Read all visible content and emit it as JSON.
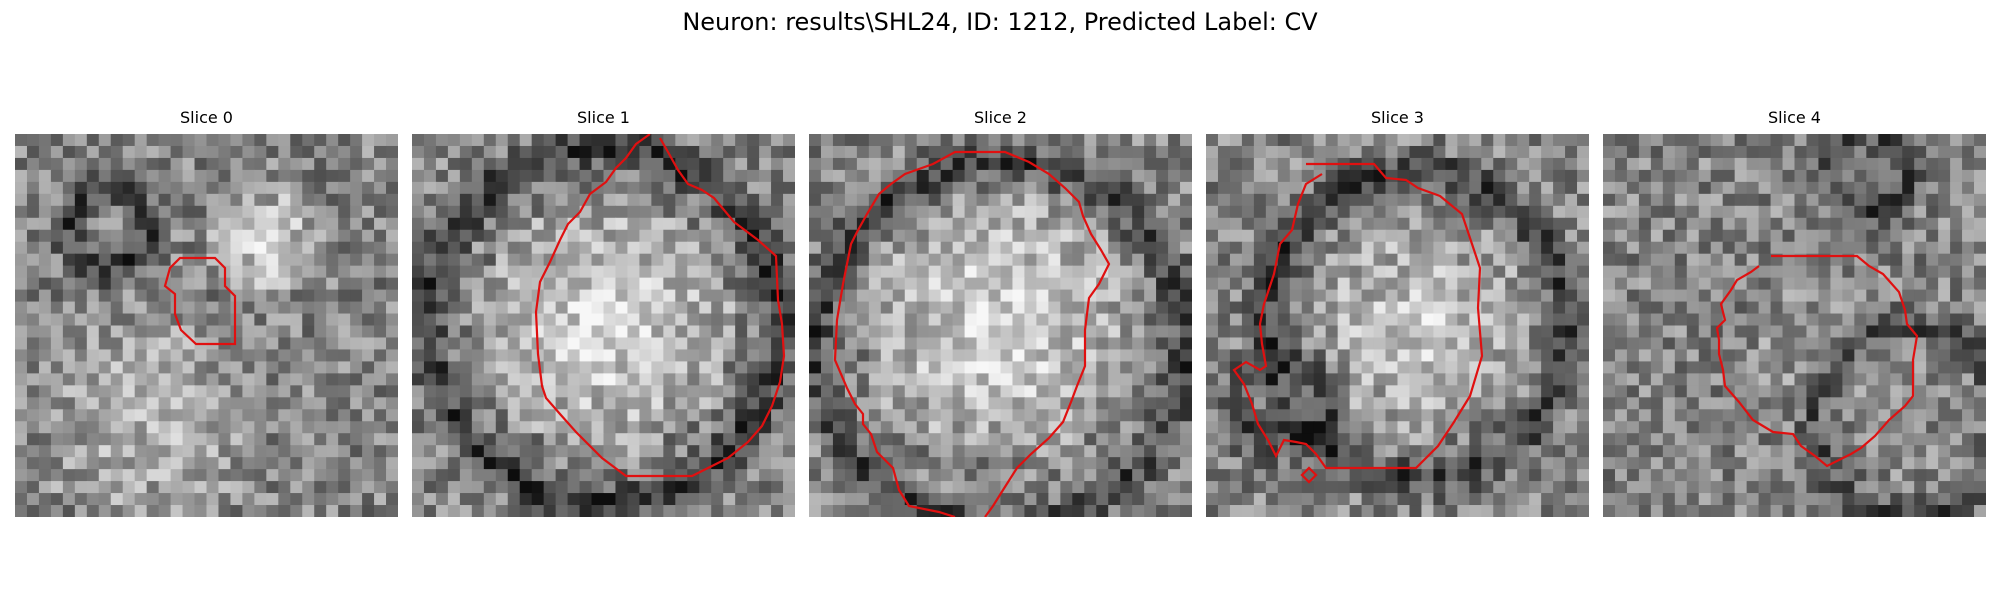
{
  "figure": {
    "title": "Neuron: results\\SHL24, ID: 1212, Predicted Label: CV"
  },
  "slices": [
    {
      "title": "Slice 0",
      "seed": 11,
      "blobs": [
        [
          0.65,
          0.28,
          0.16,
          0.4
        ],
        [
          0.35,
          0.75,
          0.3,
          0.25
        ]
      ],
      "darks": [
        [
          0.25,
          0.25,
          0.1,
          -0.3
        ]
      ]
    },
    {
      "title": "Slice 1",
      "seed": 23,
      "blobs": [
        [
          0.5,
          0.5,
          0.34,
          0.45
        ]
      ],
      "darks": [
        [
          0.5,
          0.5,
          0.46,
          -0.35
        ]
      ]
    },
    {
      "title": "Slice 2",
      "seed": 37,
      "blobs": [
        [
          0.5,
          0.5,
          0.36,
          0.45
        ]
      ],
      "darks": [
        [
          0.5,
          0.55,
          0.48,
          -0.3
        ]
      ]
    },
    {
      "title": "Slice 3",
      "seed": 41,
      "blobs": [
        [
          0.55,
          0.5,
          0.3,
          0.35
        ]
      ],
      "darks": [
        [
          0.55,
          0.5,
          0.4,
          -0.3
        ],
        [
          0.2,
          0.7,
          0.12,
          -0.25
        ]
      ]
    },
    {
      "title": "Slice 4",
      "seed": 53,
      "blobs": [
        [
          0.58,
          0.55,
          0.22,
          0.1
        ]
      ],
      "darks": [
        [
          0.8,
          0.75,
          0.25,
          -0.25
        ],
        [
          0.7,
          0.1,
          0.1,
          -0.25
        ]
      ]
    }
  ],
  "colors": {
    "contour": "#e01010"
  }
}
